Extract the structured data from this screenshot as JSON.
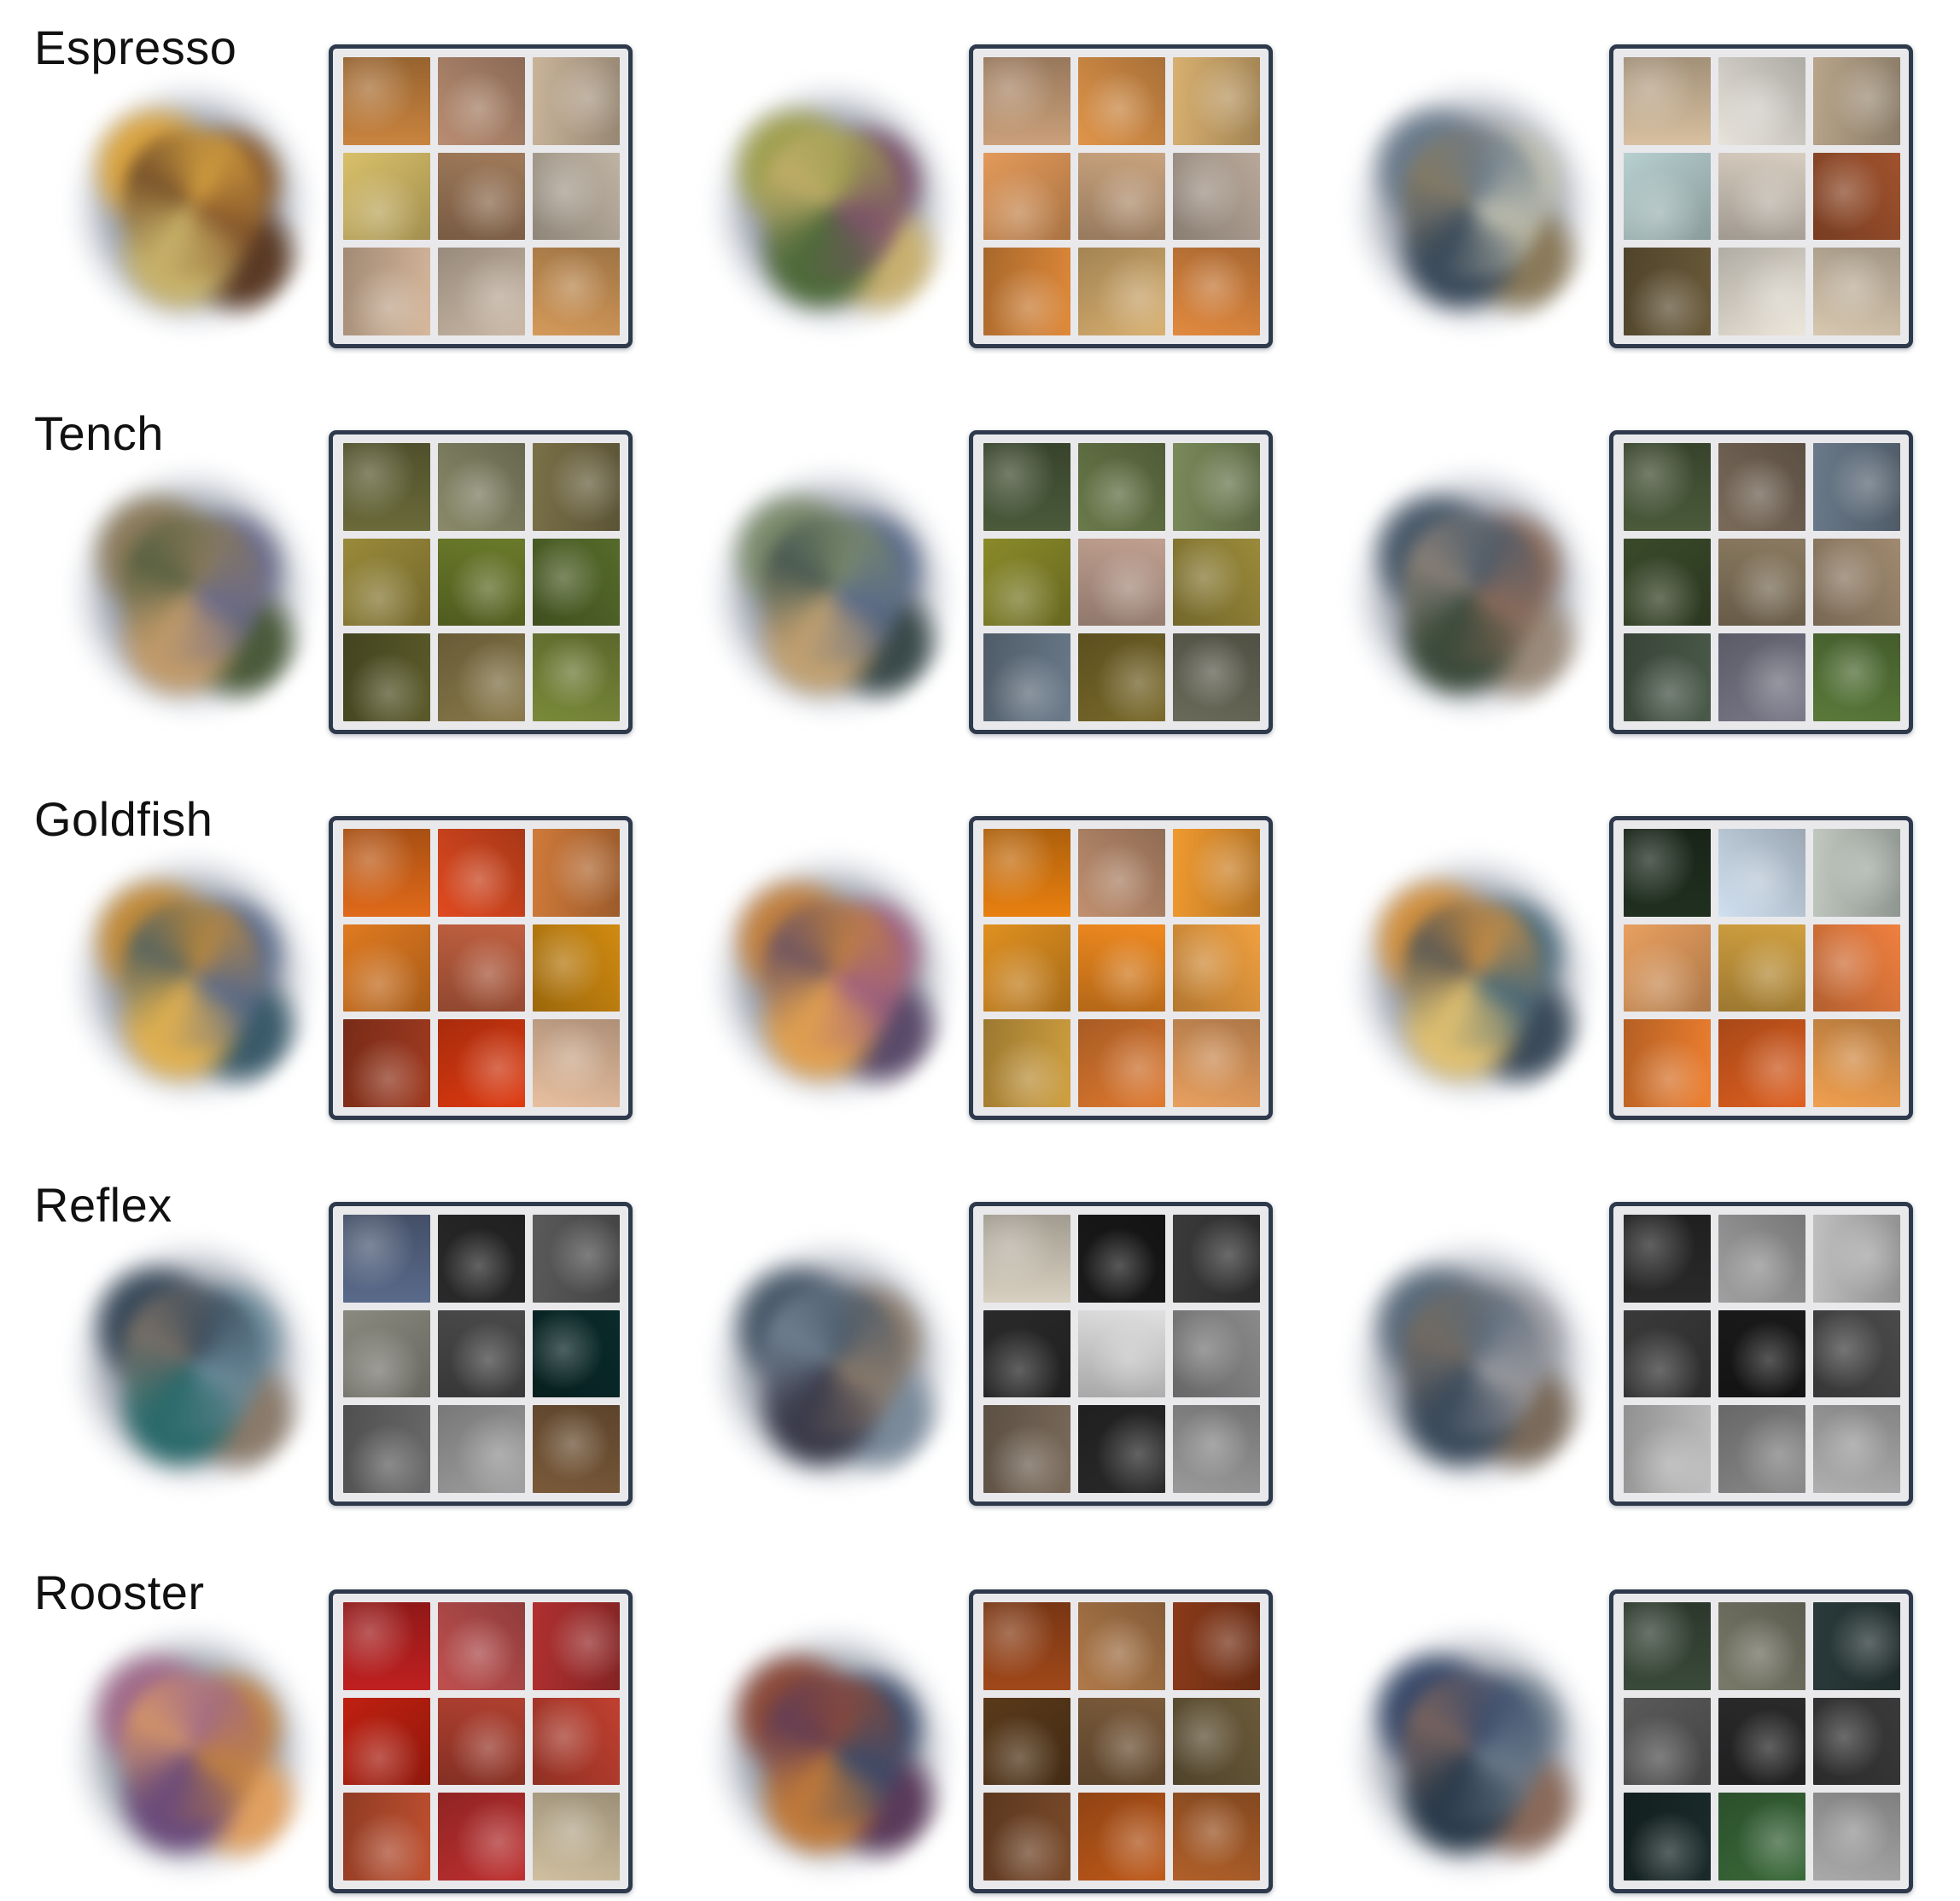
{
  "rows": [
    {
      "label": "Espresso",
      "blobs": [
        [
          "#d9a441",
          "#8a5a2b",
          "#c7b26a",
          "#5a3a25"
        ],
        [
          "#a0a050",
          "#7a4f6a",
          "#4f6a3a",
          "#c8b070"
        ],
        [
          "#6a7a8a",
          "#c0c0b0",
          "#3a4a5a",
          "#8a7a5a"
        ]
      ],
      "grids": [
        [
          "#c9843f",
          "#b98d72",
          "#c9b49a",
          "#d9c06a",
          "#a07a5a",
          "#bfb3a3",
          "#d7b89c",
          "#cbb9a6",
          "#d49a5a"
        ],
        [
          "#caa07a",
          "#e0954a",
          "#d8b070",
          "#e39a5a",
          "#c9a37e",
          "#b8a89a",
          "#e08a3a",
          "#d9b070",
          "#e28a40"
        ],
        [
          "#d8c0a0",
          "#e8e4dc",
          "#b8a58a",
          "#b8d0d0",
          "#d7cdc0",
          "#a0522d",
          "#6a5a3a",
          "#ece6da",
          "#d8c8b0"
        ]
      ]
    },
    {
      "label": "Tench",
      "blobs": [
        [
          "#8a7a5a",
          "#6a6a8a",
          "#c09a6a",
          "#4a5a3a"
        ],
        [
          "#7a8a6a",
          "#5a6a8a",
          "#c0a070",
          "#3a4a4a"
        ],
        [
          "#4a5a6a",
          "#8a6a5a",
          "#3a4a3a",
          "#9a8a7a"
        ]
      ],
      "grids": [
        [
          "#6a6a3a",
          "#8a8a6a",
          "#7a7048",
          "#9a8a3a",
          "#6a7a2a",
          "#556a2a",
          "#5a5a2a",
          "#8a7a4a",
          "#7a8a3a"
        ],
        [
          "#4a5a3a",
          "#6a7a4a",
          "#7a8a5a",
          "#8a8a2a",
          "#c0a090",
          "#9a8a3a",
          "#6a7a8a",
          "#7a6a2a",
          "#6a6a5a"
        ],
        [
          "#4a5a3a",
          "#7a6a5a",
          "#6a7a8a",
          "#3a4a2a",
          "#8a7a60",
          "#a08a70",
          "#4a5a4a",
          "#7a7a8a",
          "#5a7a3a"
        ]
      ]
    },
    {
      "label": "Goldfish",
      "blobs": [
        [
          "#c08a3a",
          "#5a6a8a",
          "#e0b050",
          "#3a5a6a"
        ],
        [
          "#c08040",
          "#a06080",
          "#e0a050",
          "#5a4a6a"
        ],
        [
          "#d09040",
          "#4a6a7a",
          "#e0c070",
          "#3a4a5a"
        ]
      ],
      "grids": [
        [
          "#e06a1a",
          "#e04a20",
          "#d07a3a",
          "#e07a20",
          "#c06040",
          "#d08a10",
          "#a03a20",
          "#e03a10",
          "#e8c0a0"
        ],
        [
          "#e88010",
          "#c09070",
          "#f09a30",
          "#e09020",
          "#f08a20",
          "#f0a040",
          "#d0a040",
          "#e07a30",
          "#e8a060"
        ],
        [
          "#203020",
          "#d0e0f0",
          "#c0c8c0",
          "#e8a060",
          "#d0a040",
          "#f08040",
          "#f08030",
          "#e06020",
          "#f0a050"
        ]
      ]
    },
    {
      "label": "Reflex",
      "blobs": [
        [
          "#3a4a5a",
          "#6a8a9a",
          "#2a6a6a",
          "#8a7a6a"
        ],
        [
          "#4a5a6a",
          "#8a7a6a",
          "#3a3a4a",
          "#7a8a9a"
        ],
        [
          "#5a6a7a",
          "#9a9aa0",
          "#3a4a5a",
          "#7a6a5a"
        ]
      ],
      "grids": [
        [
          "#5a6a8a",
          "#2a2a2a",
          "#5a5a5a",
          "#8a8a80",
          "#4a4a4a",
          "#0a2a2a",
          "#6a6a6a",
          "#a0a0a0",
          "#7a5a3a"
        ],
        [
          "#d8d0c0",
          "#1a1a1a",
          "#3a3a3a",
          "#2a2a2a",
          "#e0e0e0",
          "#8a8a8a",
          "#7a6a5a",
          "#2a2a2a",
          "#9a9a9a"
        ],
        [
          "#2a2a2a",
          "#a0a0a0",
          "#c0c0c0",
          "#3a3a3a",
          "#1a1a1a",
          "#4a4a4a",
          "#c0c0c0",
          "#8a8a8a",
          "#b0b0b0"
        ]
      ]
    },
    {
      "label": "Rooster",
      "blobs": [
        [
          "#a06a8a",
          "#c08040",
          "#6a4a7a",
          "#e0a060"
        ],
        [
          "#8a4a3a",
          "#3a4a6a",
          "#c07a3a",
          "#5a3a5a"
        ],
        [
          "#3a4a6a",
          "#6a7a8a",
          "#2a3a4a",
          "#8a6a5a"
        ]
      ],
      "grids": [
        [
          "#c02020",
          "#c05050",
          "#b03030",
          "#c02010",
          "#b04030",
          "#c04030",
          "#c05030",
          "#c03030",
          "#d0c0a0"
        ],
        [
          "#a0481a",
          "#b07a4a",
          "#8a3a1a",
          "#5a3a1a",
          "#7a5a3a",
          "#6a5a3a",
          "#7a4a2a",
          "#c05a1a",
          "#b0602a"
        ],
        [
          "#3a4a3a",
          "#7a7a6a",
          "#2a3a3a",
          "#5a5a5a",
          "#2a2a2a",
          "#3a3a3a",
          "#1a2a2a",
          "#3a6a3a",
          "#aaaaaa"
        ]
      ]
    }
  ]
}
